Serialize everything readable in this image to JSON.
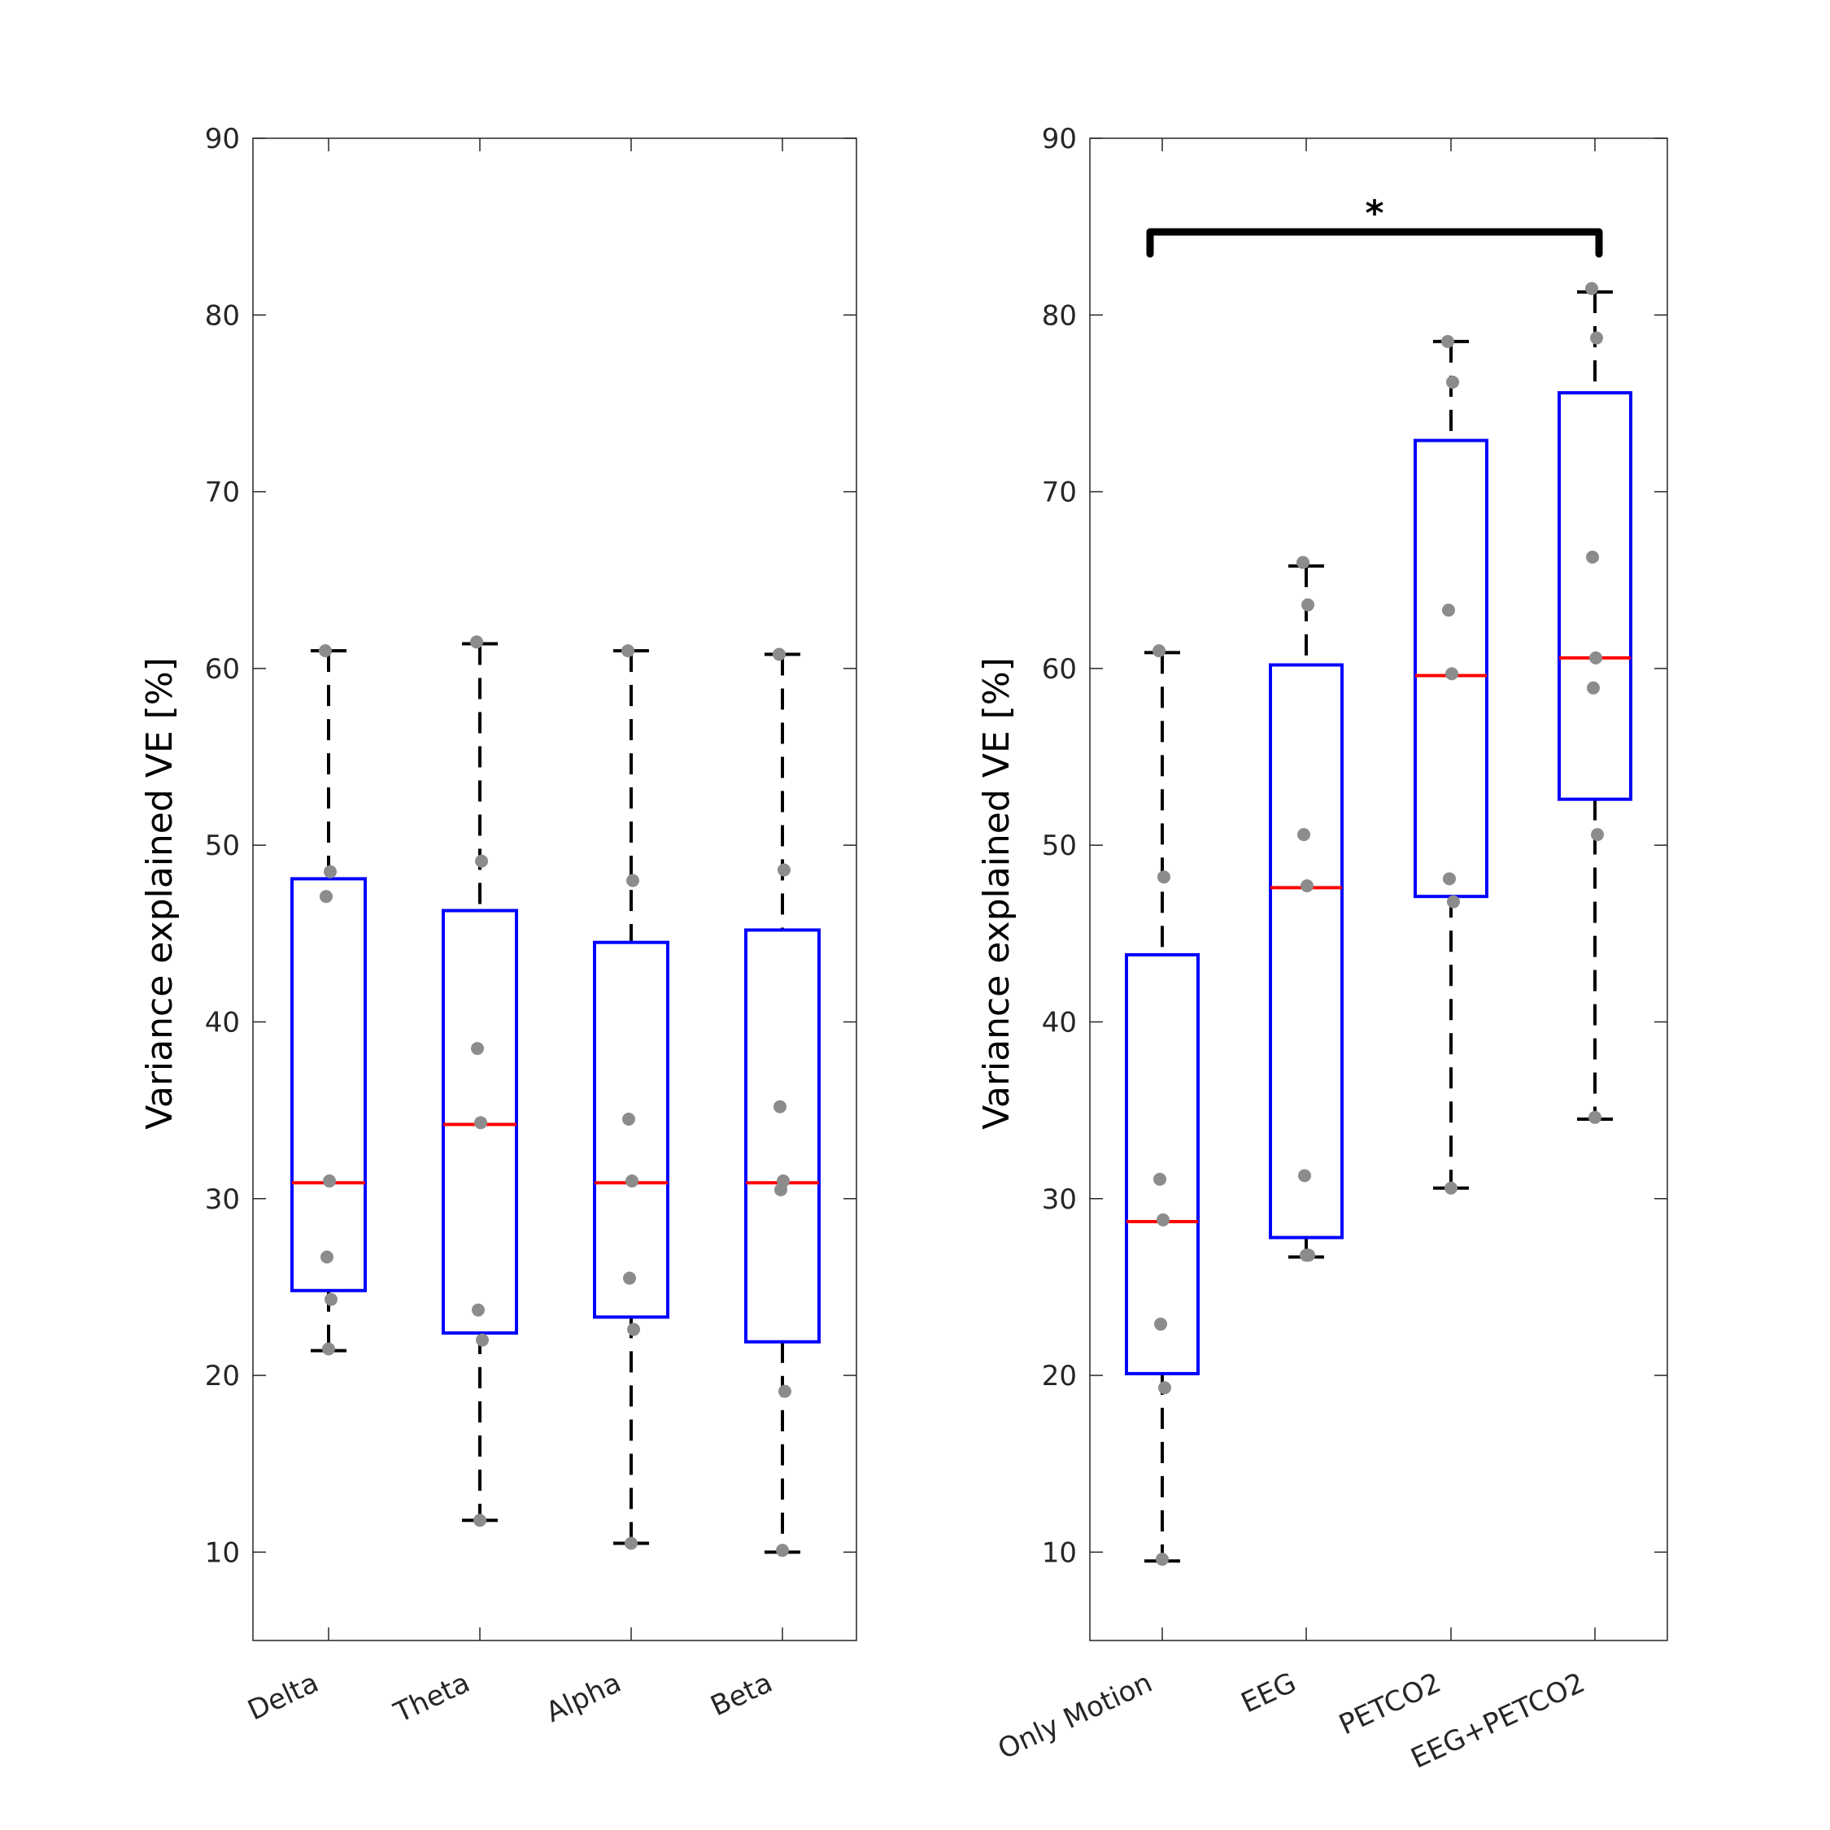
{
  "colors": {
    "box": "#0000ff",
    "median": "#ff0000",
    "whisker": "#000000",
    "points": "#8c8c8c",
    "axis": "#262626"
  },
  "chart_data": [
    {
      "type": "box",
      "ylabel": "Variance explained VE [%]",
      "ylim": [
        5,
        90
      ],
      "yticks": [
        "10",
        "20",
        "30",
        "40",
        "50",
        "60",
        "70",
        "80",
        "90"
      ],
      "categories": [
        "Delta",
        "Theta",
        "Alpha",
        "Beta"
      ],
      "boxes": [
        {
          "whisker_low": 21.4,
          "q1": 24.8,
          "median": 30.9,
          "q3": 48.1,
          "whisker_high": 61.0
        },
        {
          "whisker_low": 11.8,
          "q1": 22.4,
          "median": 34.2,
          "q3": 46.3,
          "whisker_high": 61.4
        },
        {
          "whisker_low": 10.5,
          "q1": 23.3,
          "median": 30.9,
          "q3": 44.5,
          "whisker_high": 61.0
        },
        {
          "whisker_low": 10.0,
          "q1": 21.9,
          "median": 30.9,
          "q3": 45.2,
          "whisker_high": 60.8
        }
      ],
      "points": [
        [
          61.0,
          48.5,
          47.1,
          31.0,
          26.7,
          24.3,
          21.5
        ],
        [
          61.5,
          49.1,
          38.5,
          34.3,
          23.7,
          22.0,
          11.8
        ],
        [
          61.0,
          48.0,
          34.5,
          31.0,
          25.5,
          22.6,
          10.5
        ],
        [
          60.8,
          48.6,
          35.2,
          31.0,
          30.5,
          19.1,
          10.1
        ]
      ]
    },
    {
      "type": "box",
      "ylabel": "Variance explained VE [%]",
      "ylim": [
        5,
        90
      ],
      "yticks": [
        "10",
        "20",
        "30",
        "40",
        "50",
        "60",
        "70",
        "80",
        "90"
      ],
      "categories": [
        "Only Motion",
        "EEG",
        "PETCO2",
        "EEG+PETCO2"
      ],
      "boxes": [
        {
          "whisker_low": 9.5,
          "q1": 20.1,
          "median": 28.7,
          "q3": 43.8,
          "whisker_high": 60.9
        },
        {
          "whisker_low": 26.7,
          "q1": 27.8,
          "median": 47.6,
          "q3": 60.2,
          "whisker_high": 65.8
        },
        {
          "whisker_low": 30.6,
          "q1": 47.1,
          "median": 59.6,
          "q3": 72.9,
          "whisker_high": 78.5
        },
        {
          "whisker_low": 34.5,
          "q1": 52.6,
          "median": 60.6,
          "q3": 75.6,
          "whisker_high": 81.3
        }
      ],
      "points": [
        [
          61.0,
          48.2,
          31.1,
          28.8,
          22.9,
          19.3,
          9.6
        ],
        [
          66.0,
          63.6,
          50.6,
          47.7,
          31.3,
          26.8,
          26.8
        ],
        [
          78.5,
          76.2,
          63.3,
          59.7,
          48.1,
          46.8,
          30.6
        ],
        [
          81.5,
          78.7,
          66.3,
          60.6,
          58.9,
          50.6,
          34.6
        ]
      ],
      "significance": {
        "from": 0,
        "to": 3,
        "label": "*",
        "y": 84.7
      }
    }
  ]
}
